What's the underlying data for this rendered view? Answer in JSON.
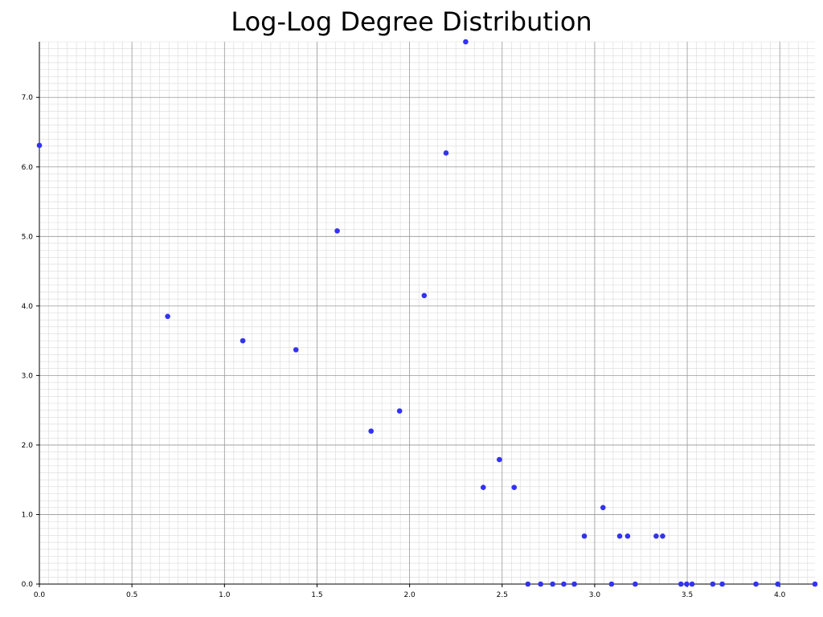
{
  "chart_data": {
    "type": "scatter",
    "title": "Log-Log Degree Distribution",
    "xlabel": "",
    "ylabel": "",
    "xlim": [
      0.0,
      4.19
    ],
    "ylim": [
      0.0,
      7.8
    ],
    "x_ticks": [
      "0.0",
      "0.5",
      "1.0",
      "1.5",
      "2.0",
      "2.5",
      "3.0",
      "3.5",
      "4.0"
    ],
    "y_ticks": [
      "0.0",
      "1.0",
      "2.0",
      "3.0",
      "4.0",
      "5.0",
      "6.0",
      "7.0"
    ],
    "grid": true,
    "minor_grid": true,
    "marker_color": "#3333ee",
    "series": [
      {
        "x": [
          0.0,
          0.693,
          1.099,
          1.386,
          1.609,
          1.792,
          1.946,
          2.079,
          2.197,
          2.303,
          2.398,
          2.485,
          2.565,
          2.639,
          2.708,
          2.773,
          2.833,
          2.89,
          2.944,
          3.045,
          3.091,
          3.135,
          3.178,
          3.219,
          3.332,
          3.367,
          3.466,
          3.497,
          3.526,
          3.638,
          3.689,
          3.871,
          3.989,
          4.19
        ],
        "y": [
          6.31,
          3.85,
          3.5,
          3.37,
          5.08,
          2.2,
          2.49,
          4.15,
          6.2,
          7.8,
          1.39,
          1.79,
          1.39,
          0.0,
          0.0,
          0.0,
          0.0,
          0.0,
          0.69,
          1.1,
          0.0,
          0.69,
          0.69,
          0.0,
          0.69,
          0.69,
          0.0,
          0.0,
          0.0,
          0.0,
          0.0,
          0.0,
          0.0,
          0.0
        ]
      }
    ]
  }
}
